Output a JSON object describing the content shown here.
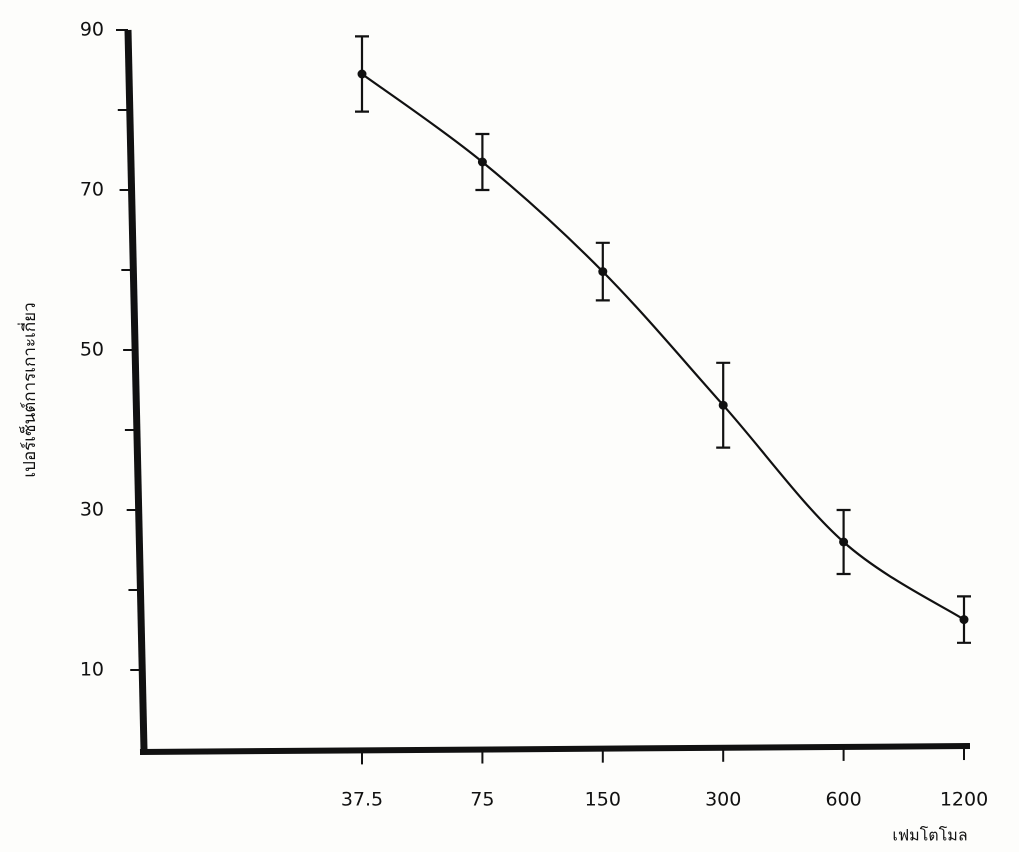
{
  "chart_data": {
    "type": "line",
    "y_label": "เปอร์เซ็นต์การเกาะเกี่ยว",
    "x_label": "เฟมโตโมล",
    "categories": [
      "37.5",
      "75",
      "150",
      "300",
      "600",
      "1200"
    ],
    "series": [
      {
        "color": "#111111",
        "values": [
          84.5,
          73.5,
          59.8,
          43.1,
          26,
          16.3
        ],
        "errors": [
          4.7,
          3.5,
          3.6,
          5.3,
          4,
          2.9
        ]
      }
    ],
    "ylim": [
      0,
      90
    ],
    "yticks": [
      10,
      30,
      50,
      70,
      90
    ],
    "yminorticks": [
      20,
      40,
      60,
      80
    ]
  }
}
